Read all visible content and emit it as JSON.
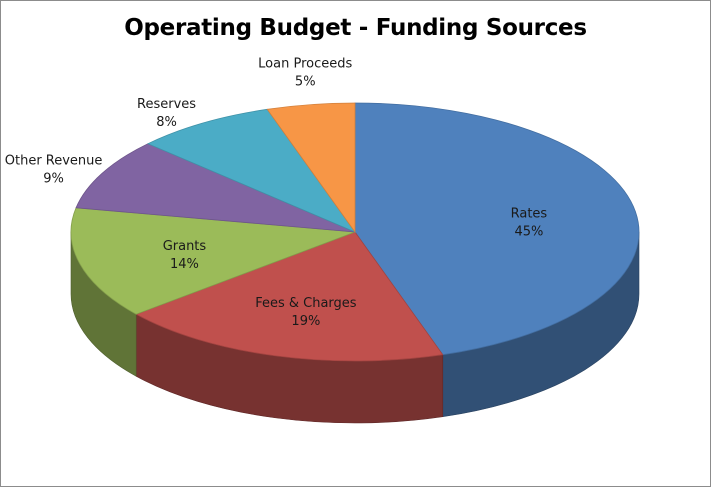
{
  "chart_data": {
    "type": "pie",
    "title": "Operating Budget - Funding Sources",
    "style": "3d",
    "slices": [
      {
        "label": "Rates",
        "value": 45,
        "display": "45%",
        "color": "#4f81bd"
      },
      {
        "label": "Fees & Charges",
        "value": 19,
        "display": "19%",
        "color": "#c0504d"
      },
      {
        "label": "Grants",
        "value": 14,
        "display": "14%",
        "color": "#9bbb59"
      },
      {
        "label": "Other Revenue",
        "value": 9,
        "display": "9%",
        "color": "#8064a2"
      },
      {
        "label": "Reserves",
        "value": 8,
        "display": "8%",
        "color": "#4bacc6"
      },
      {
        "label": "Loan Proceeds",
        "value": 5,
        "display": "5%",
        "color": "#f79646"
      }
    ]
  }
}
